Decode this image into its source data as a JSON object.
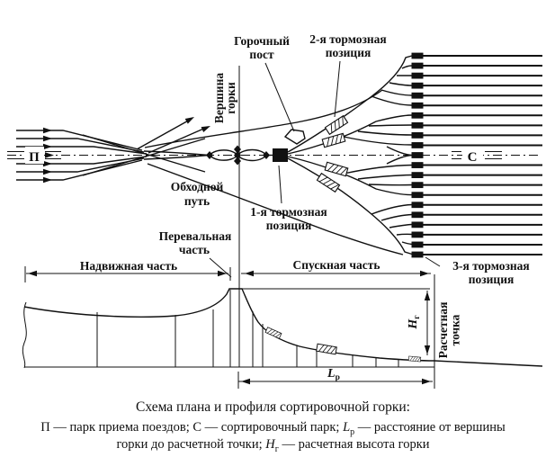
{
  "diagram": {
    "plan": {
      "park_left": "П",
      "park_right": "С",
      "hump_post": {
        "line1": "Горочный",
        "line2": "пост"
      },
      "brake2": {
        "line1": "2-я тормозная",
        "line2": "позиция"
      },
      "brake1": {
        "line1": "1-я тормозная",
        "line2": "позиция"
      },
      "bypass": {
        "line1": "Обходной",
        "line2": "путь"
      },
      "summit": {
        "line1": "Вершина",
        "line2": "горки"
      },
      "sorting_tracks_count": 21
    },
    "profile": {
      "pushing_part": "Надвижная часть",
      "hump_part": {
        "line1": "Перевальная",
        "line2": "часть"
      },
      "descent_part": "Спускная часть",
      "brake3": {
        "line1": "3-я тормозная",
        "line2": "позиция"
      },
      "calc_point": {
        "line1": "Расчетная",
        "line2": "точка"
      },
      "height_symbol": {
        "main": "H",
        "sub": "г"
      },
      "length_symbol": {
        "main": "L",
        "sub": "р"
      }
    }
  },
  "caption": {
    "title": "Схема плана и профиля сортировочной горки:",
    "legend_line1_pre": "П — парк приема поездов; С — сортировочный парк; ",
    "legend_l_main": "L",
    "legend_l_sub": "р",
    "legend_line1_post": " — расстояние от вершины",
    "legend_line2_pre": "горки до расчетной точки; ",
    "legend_h_main": "H",
    "legend_h_sub": "г",
    "legend_line2_post": " — расчетная высота горки"
  }
}
